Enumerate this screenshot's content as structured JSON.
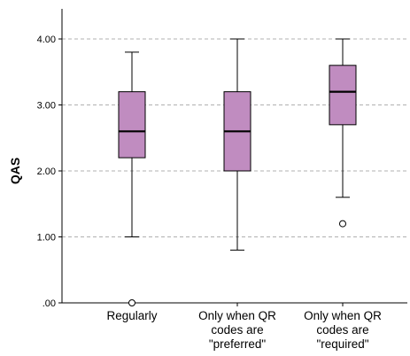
{
  "chart_data": {
    "type": "boxplot",
    "ylabel": "QAS",
    "xlabel": "",
    "ylim": [
      0,
      4.4
    ],
    "yticks": [
      {
        "value": 0,
        "label": ".00"
      },
      {
        "value": 1,
        "label": "1.00"
      },
      {
        "value": 2,
        "label": "2.00"
      },
      {
        "value": 3,
        "label": "3.00"
      },
      {
        "value": 4,
        "label": "4.00"
      }
    ],
    "grid": "horizontal-dashed",
    "categories": [
      {
        "lines": [
          "Regularly"
        ]
      },
      {
        "lines": [
          "Only when QR",
          "codes are",
          "\"preferred\""
        ]
      },
      {
        "lines": [
          "Only when QR",
          "codes are",
          "\"required\""
        ]
      }
    ],
    "boxes": [
      {
        "whisker_low": 1.0,
        "q1": 2.2,
        "median": 2.6,
        "q3": 3.2,
        "whisker_high": 3.8,
        "outliers": [
          0.0
        ]
      },
      {
        "whisker_low": 0.8,
        "q1": 2.0,
        "median": 2.6,
        "q3": 3.2,
        "whisker_high": 4.0,
        "outliers": []
      },
      {
        "whisker_low": 1.6,
        "q1": 2.7,
        "median": 3.2,
        "q3": 3.6,
        "whisker_high": 4.0,
        "outliers": [
          1.2
        ]
      }
    ],
    "colors": {
      "box_fill": "#c08cc0",
      "grid": "#b0b0b0",
      "stroke": "#000000"
    }
  }
}
